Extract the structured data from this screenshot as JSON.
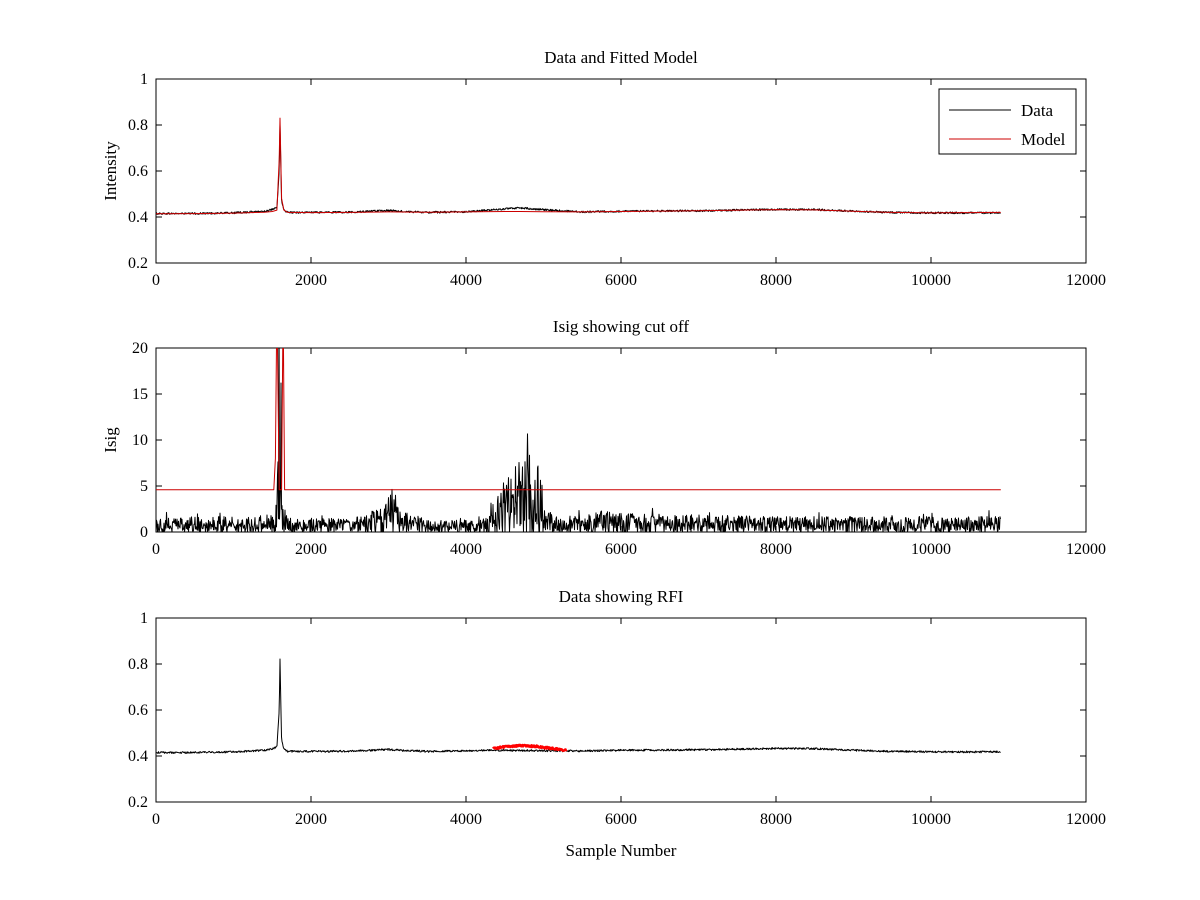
{
  "chart_data": [
    {
      "type": "line",
      "title": "Data and Fitted Model",
      "xlabel": "",
      "ylabel": "Intensity",
      "xlim": [
        0,
        12000
      ],
      "ylim": [
        0.2,
        1.0
      ],
      "xticks": [
        0,
        2000,
        4000,
        6000,
        8000,
        10000,
        12000
      ],
      "yticks": [
        0.2,
        0.4,
        0.6,
        0.8,
        1.0
      ],
      "xtick_labels": [
        "0",
        "2000",
        "4000",
        "6000",
        "8000",
        "10000",
        "12000"
      ],
      "ytick_labels": [
        "0.2",
        "0.4",
        "0.6",
        "0.8",
        "1"
      ],
      "grid": false,
      "legend": {
        "placement": "top-right",
        "entries": [
          {
            "name": "Data",
            "color": "#000000"
          },
          {
            "name": "Model",
            "color": "#cc0000"
          }
        ]
      },
      "series": [
        {
          "name": "Data",
          "color": "#000000",
          "x": [
            0,
            500,
            1000,
            1400,
            1500,
            1560,
            1590,
            1600,
            1620,
            1650,
            1700,
            2000,
            2500,
            3000,
            3200,
            3500,
            4000,
            4500,
            4700,
            5000,
            5500,
            6000,
            7000,
            8000,
            8500,
            9000,
            9500,
            10000,
            10900
          ],
          "y": [
            0.415,
            0.415,
            0.418,
            0.425,
            0.432,
            0.44,
            0.6,
            0.8,
            0.47,
            0.43,
            0.42,
            0.42,
            0.421,
            0.428,
            0.424,
            0.42,
            0.423,
            0.435,
            0.44,
            0.432,
            0.422,
            0.425,
            0.427,
            0.433,
            0.432,
            0.425,
            0.42,
            0.418,
            0.418
          ],
          "noise": 0.004
        },
        {
          "name": "Model",
          "color": "#cc0000",
          "x": [
            0,
            500,
            1000,
            1400,
            1500,
            1560,
            1590,
            1600,
            1620,
            1650,
            1700,
            2000,
            2500,
            3000,
            3500,
            4000,
            4500,
            4700,
            5000,
            5500,
            6000,
            7000,
            8000,
            8500,
            9000,
            9500,
            10000,
            10900
          ],
          "y": [
            0.414,
            0.415,
            0.417,
            0.421,
            0.424,
            0.43,
            0.65,
            0.83,
            0.48,
            0.43,
            0.42,
            0.419,
            0.42,
            0.422,
            0.421,
            0.422,
            0.424,
            0.424,
            0.423,
            0.422,
            0.424,
            0.427,
            0.432,
            0.431,
            0.425,
            0.42,
            0.418,
            0.42
          ]
        }
      ]
    },
    {
      "type": "line",
      "title": "Isig showing cut off",
      "xlabel": "",
      "ylabel": "Isig",
      "xlim": [
        0,
        12000
      ],
      "ylim": [
        0,
        20
      ],
      "xticks": [
        0,
        2000,
        4000,
        6000,
        8000,
        10000,
        12000
      ],
      "yticks": [
        0,
        5,
        10,
        15,
        20
      ],
      "xtick_labels": [
        "0",
        "2000",
        "4000",
        "6000",
        "8000",
        "10000",
        "12000"
      ],
      "ytick_labels": [
        "0",
        "5",
        "10",
        "15",
        "20"
      ],
      "grid": false,
      "series": [
        {
          "name": "Isig",
          "color": "#000000",
          "x": [
            0,
            1000,
            1500,
            1560,
            1590,
            1600,
            1620,
            1650,
            1700,
            2500,
            2950,
            3050,
            3150,
            3500,
            4200,
            4400,
            4600,
            4800,
            4950,
            5050,
            5500,
            5700,
            6000,
            7000,
            8000,
            9000,
            10000,
            10900
          ],
          "y": [
            0.8,
            0.8,
            0.9,
            1.5,
            10.5,
            7,
            9,
            1,
            0.8,
            0.7,
            1.3,
            2.5,
            1.2,
            0.6,
            0.7,
            2,
            3.5,
            3.8,
            3.5,
            1,
            0.8,
            1.2,
            1,
            0.9,
            0.8,
            0.8,
            0.8,
            0.8
          ],
          "noise": 0.8
        },
        {
          "name": "Cut off",
          "color": "#cc0000",
          "x": [
            0,
            1520,
            1540,
            1560,
            1590,
            1600,
            1620,
            1640,
            1660,
            10900
          ],
          "y": [
            4.6,
            4.6,
            8,
            25,
            4.6,
            4.6,
            4.6,
            25,
            4.6,
            4.6
          ]
        }
      ]
    },
    {
      "type": "line",
      "title": "Data showing RFI",
      "xlabel": "Sample Number",
      "ylabel": "",
      "xlim": [
        0,
        12000
      ],
      "ylim": [
        0.2,
        1.0
      ],
      "xticks": [
        0,
        2000,
        4000,
        6000,
        8000,
        10000,
        12000
      ],
      "yticks": [
        0.2,
        0.4,
        0.6,
        0.8,
        1.0
      ],
      "xtick_labels": [
        "0",
        "2000",
        "4000",
        "6000",
        "8000",
        "10000",
        "12000"
      ],
      "ytick_labels": [
        "0.2",
        "0.4",
        "0.6",
        "0.8",
        "1"
      ],
      "grid": false,
      "series": [
        {
          "name": "Data",
          "color": "#000000",
          "x": [
            0,
            500,
            1000,
            1400,
            1500,
            1560,
            1590,
            1600,
            1620,
            1650,
            1700,
            2000,
            2500,
            3000,
            3200,
            3500,
            4000,
            4350,
            5300,
            5500,
            6000,
            7000,
            8000,
            8500,
            9000,
            9500,
            10000,
            10900
          ],
          "y": [
            0.415,
            0.415,
            0.418,
            0.425,
            0.432,
            0.44,
            0.6,
            0.82,
            0.47,
            0.43,
            0.42,
            0.42,
            0.421,
            0.428,
            0.424,
            0.42,
            0.423,
            0.425,
            0.422,
            0.422,
            0.425,
            0.427,
            0.433,
            0.432,
            0.425,
            0.42,
            0.418,
            0.418
          ],
          "noise": 0.004
        },
        {
          "name": "RFI",
          "color": "#ff0000",
          "x": [
            4350,
            4500,
            4700,
            4900,
            5100,
            5300
          ],
          "y": [
            0.433,
            0.44,
            0.445,
            0.442,
            0.433,
            0.425
          ],
          "noise": 0.004
        }
      ]
    }
  ]
}
